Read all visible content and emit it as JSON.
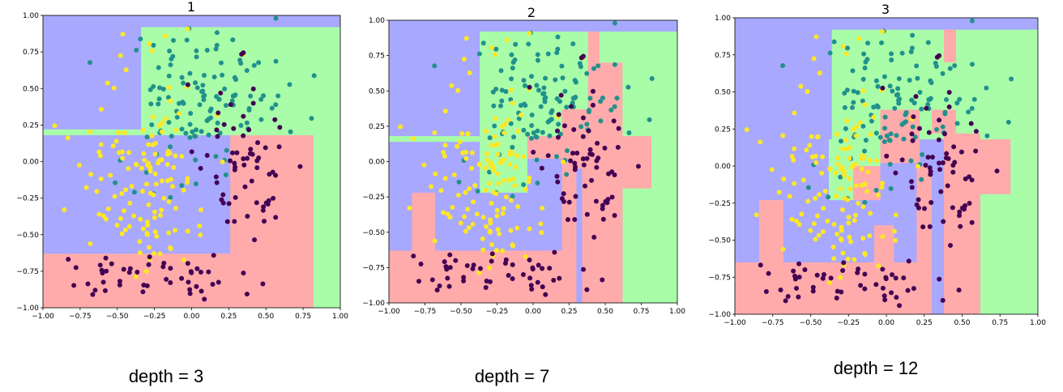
{
  "colors": {
    "region_blue": "#a8a8ff",
    "region_green": "#a9fda9",
    "region_red": "#ffabab",
    "point_purple": "#440154",
    "point_teal": "#21918c",
    "point_yellow": "#fde725"
  },
  "chart_data": [
    {
      "type": "scatter",
      "title": "1",
      "caption": "depth = 3",
      "xlim": [
        -1,
        1
      ],
      "ylim": [
        -1,
        1
      ],
      "x_ticks": [
        "−1.00",
        "−0.75",
        "−0.50",
        "−0.25",
        "0.00",
        "0.25",
        "0.50",
        "0.75",
        "1.00"
      ],
      "y_ticks": [
        "1.00",
        "0.75",
        "0.50",
        "0.25",
        "0.00",
        "−0.25",
        "−0.50",
        "−0.75",
        "−1.00"
      ],
      "regions": [
        {
          "class": "blue",
          "x": [
            -1,
            1
          ],
          "y": [
            -1,
            1
          ]
        },
        {
          "class": "green",
          "x": [
            -0.34,
            1
          ],
          "y": [
            0.18,
            0.92
          ]
        },
        {
          "class": "green",
          "x": [
            -1,
            -0.34
          ],
          "y": [
            0.18,
            0.22
          ]
        },
        {
          "class": "green",
          "x": [
            0.82,
            1
          ],
          "y": [
            -1,
            0.18
          ]
        },
        {
          "class": "red",
          "x": [
            0.26,
            0.82
          ],
          "y": [
            -1,
            0.18
          ]
        },
        {
          "class": "red",
          "x": [
            -1,
            0.26
          ],
          "y": [
            -1,
            -0.63
          ]
        }
      ]
    },
    {
      "type": "scatter",
      "title": "2",
      "caption": "depth = 7",
      "xlim": [
        -1,
        1
      ],
      "ylim": [
        -1,
        1
      ],
      "x_ticks": [
        "−1.00",
        "−0.75",
        "−0.50",
        "−0.25",
        "0.00",
        "0.25",
        "0.50",
        "0.75",
        "1.00"
      ],
      "y_ticks": [
        "1.00",
        "0.75",
        "0.50",
        "0.25",
        "0.00",
        "−0.25",
        "−0.50",
        "−0.75",
        "−1.00"
      ],
      "regions": [
        {
          "class": "blue",
          "x": [
            -1,
            1
          ],
          "y": [
            -1,
            1
          ]
        },
        {
          "class": "green",
          "x": [
            -0.37,
            1
          ],
          "y": [
            0.18,
            0.92
          ]
        },
        {
          "class": "green",
          "x": [
            -0.37,
            -0.04
          ],
          "y": [
            -0.22,
            0.18
          ]
        },
        {
          "class": "green",
          "x": [
            -1,
            -0.37
          ],
          "y": [
            0.14,
            0.18
          ]
        },
        {
          "class": "green",
          "x": [
            0.62,
            1
          ],
          "y": [
            -1,
            0.18
          ]
        },
        {
          "class": "red",
          "x": [
            0.38,
            0.46
          ],
          "y": [
            0.7,
            0.92
          ]
        },
        {
          "class": "red",
          "x": [
            0.38,
            0.62
          ],
          "y": [
            -1,
            0.7
          ]
        },
        {
          "class": "red",
          "x": [
            0.62,
            0.82
          ],
          "y": [
            -0.19,
            0.18
          ]
        },
        {
          "class": "red",
          "x": [
            0.2,
            0.38
          ],
          "y": [
            -1,
            0.37
          ]
        },
        {
          "class": "red",
          "x": [
            -0.04,
            0.2
          ],
          "y": [
            0.02,
            0.18
          ]
        },
        {
          "class": "red",
          "x": [
            -1,
            0.2
          ],
          "y": [
            -1,
            -0.63
          ]
        },
        {
          "class": "red",
          "x": [
            -0.84,
            -0.68
          ],
          "y": [
            -0.63,
            -0.22
          ]
        },
        {
          "class": "blue",
          "x": [
            0.3,
            0.34
          ],
          "y": [
            -1,
            -0.05
          ]
        }
      ]
    },
    {
      "type": "scatter",
      "title": "3",
      "caption": "depth = 12",
      "xlim": [
        -1,
        1
      ],
      "ylim": [
        -1,
        1
      ],
      "x_ticks": [
        "−1.00",
        "−0.75",
        "−0.50",
        "−0.25",
        "0.00",
        "0.25",
        "0.50",
        "0.75",
        "1.00"
      ],
      "y_ticks": [
        "1.00",
        "0.75",
        "0.50",
        "0.25",
        "0.00",
        "−0.25",
        "−0.50",
        "−0.75",
        "−1.00"
      ],
      "regions": [
        {
          "class": "blue",
          "x": [
            -1,
            1
          ],
          "y": [
            -1,
            1
          ]
        },
        {
          "class": "green",
          "x": [
            -0.36,
            1
          ],
          "y": [
            0.18,
            0.92
          ]
        },
        {
          "class": "green",
          "x": [
            -0.38,
            -0.04
          ],
          "y": [
            -0.23,
            0.18
          ]
        },
        {
          "class": "green",
          "x": [
            0.62,
            1
          ],
          "y": [
            -1,
            0.18
          ]
        },
        {
          "class": "red",
          "x": [
            0.38,
            0.46
          ],
          "y": [
            0.7,
            0.92
          ]
        },
        {
          "class": "red",
          "x": [
            0.3,
            0.46
          ],
          "y": [
            0.22,
            0.38
          ]
        },
        {
          "class": "red",
          "x": [
            0.38,
            0.62
          ],
          "y": [
            -1,
            0.22
          ]
        },
        {
          "class": "red",
          "x": [
            0.62,
            0.82
          ],
          "y": [
            -0.19,
            0.18
          ]
        },
        {
          "class": "red",
          "x": [
            -0.04,
            0.22
          ],
          "y": [
            0.02,
            0.38
          ]
        },
        {
          "class": "red",
          "x": [
            -0.22,
            -0.04
          ],
          "y": [
            -0.23,
            0.0
          ]
        },
        {
          "class": "red",
          "x": [
            -1,
            0.3
          ],
          "y": [
            -1,
            -0.65
          ]
        },
        {
          "class": "red",
          "x": [
            -0.84,
            -0.68
          ],
          "y": [
            -0.65,
            -0.23
          ]
        },
        {
          "class": "red",
          "x": [
            -0.08,
            0.05
          ],
          "y": [
            -0.65,
            -0.4
          ]
        },
        {
          "class": "red",
          "x": [
            0.2,
            0.3
          ],
          "y": [
            -0.65,
            0.0
          ]
        },
        {
          "class": "blue",
          "x": [
            0.3,
            0.34
          ],
          "y": [
            -1,
            -0.05
          ]
        }
      ]
    }
  ]
}
